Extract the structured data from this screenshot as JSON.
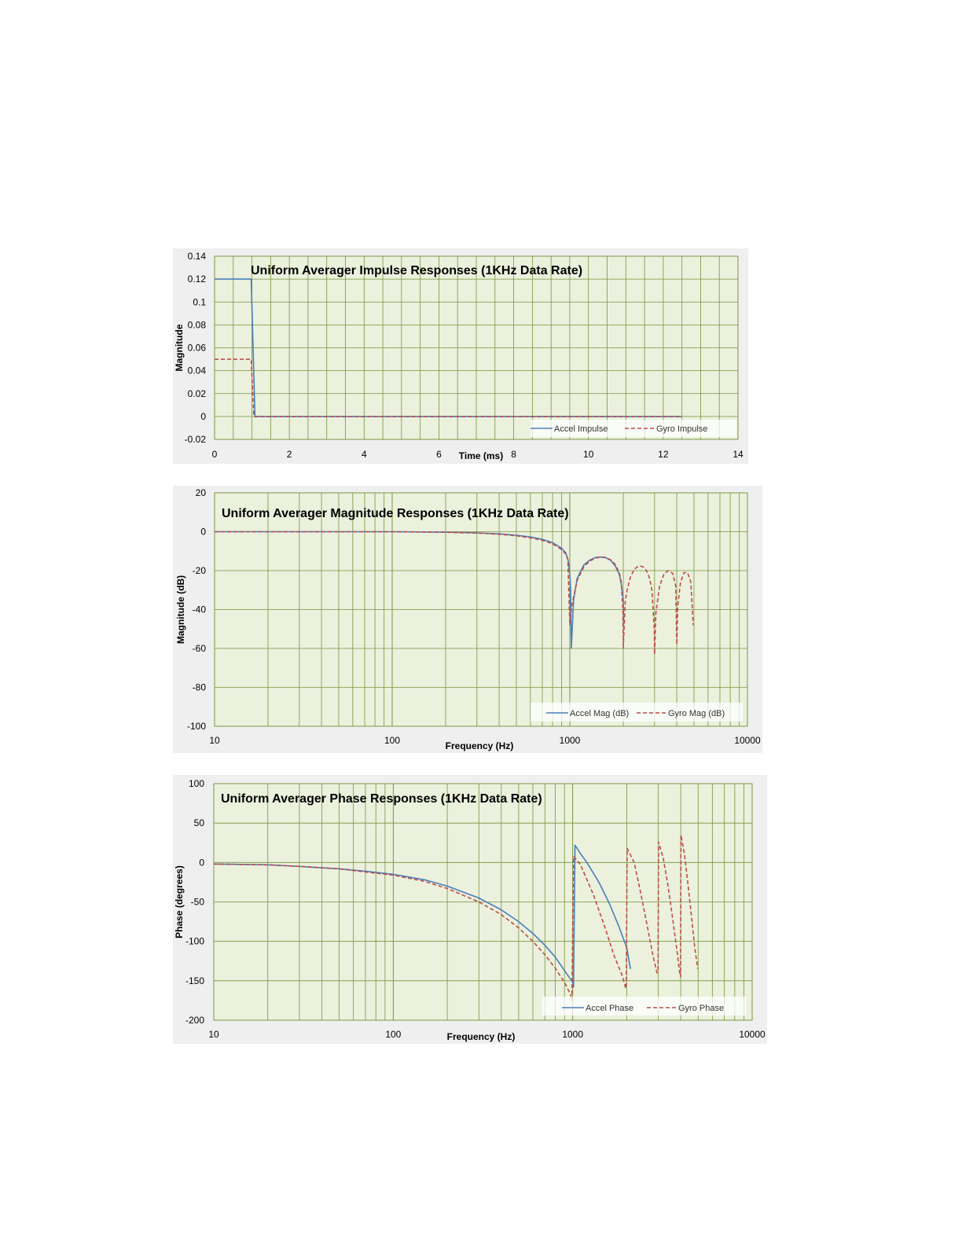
{
  "colors": {
    "plot_bg": "#ebf1dd",
    "grid": "#77933c",
    "panel_bg": "#efefef",
    "accel": "#4a7ebb",
    "gyro": "#be4b48"
  },
  "chart_data": [
    {
      "type": "line",
      "title": "Uniform Averager Impulse Responses (1KHz Data Rate)",
      "xlabel": "Time (ms)",
      "ylabel": "Magnitude",
      "xscale": "linear",
      "xlim": [
        0,
        14
      ],
      "ylim": [
        -0.02,
        0.14
      ],
      "xticks": [
        0,
        2,
        4,
        6,
        8,
        10,
        12,
        14
      ],
      "xtick_labels": [
        "0",
        "2",
        "4",
        "6",
        "8",
        "10",
        "12",
        "14"
      ],
      "yticks": [
        -0.02,
        0,
        0.02,
        0.04,
        0.06,
        0.08,
        0.1,
        0.12,
        0.14
      ],
      "ytick_labels": [
        "-0.02",
        "0",
        "0.02",
        "0.04",
        "0.06",
        "0.08",
        "0.1",
        "0.12",
        "0.14"
      ],
      "grid": true,
      "legend_position": "bottom-right",
      "series": [
        {
          "name": "Accel Impulse",
          "style": "solid",
          "x": [
            0,
            0.98,
            1.08,
            1.12,
            12.5
          ],
          "y": [
            0.12,
            0.12,
            0.0,
            0.0,
            0.0
          ]
        },
        {
          "name": "Gyro Impulse",
          "style": "dashed",
          "x": [
            0,
            0.98,
            1.05,
            1.12,
            12.5
          ],
          "y": [
            0.05,
            0.05,
            0.0,
            0.0,
            0.0
          ]
        }
      ]
    },
    {
      "type": "line",
      "title": "Uniform Averager Magnitude Responses (1KHz Data Rate)",
      "xlabel": "Frequency (Hz)",
      "ylabel": "Magnitude (dB)",
      "xscale": "log",
      "xlim": [
        10,
        10000
      ],
      "ylim": [
        -100,
        20
      ],
      "xticks": [
        10,
        100,
        1000,
        10000
      ],
      "xtick_labels": [
        "10",
        "100",
        "1000",
        "10000"
      ],
      "yticks": [
        -100,
        -80,
        -60,
        -40,
        -20,
        0,
        20
      ],
      "ytick_labels": [
        "-100",
        "-80",
        "-60",
        "-40",
        "-20",
        "0",
        "20"
      ],
      "grid": true,
      "legend_position": "bottom-right",
      "series": [
        {
          "name": "Accel Mag (dB)",
          "style": "solid",
          "x": [
            10,
            100,
            200,
            300,
            400,
            500,
            600,
            700,
            800,
            900,
            950,
            980,
            1000,
            1010,
            1020,
            1050,
            1100,
            1200,
            1300,
            1400,
            1500,
            1600,
            1700,
            1800,
            1900,
            1950,
            2000,
            2010
          ],
          "y": [
            0,
            0,
            -0.2,
            -0.6,
            -1.1,
            -1.8,
            -2.7,
            -3.9,
            -5.6,
            -8.5,
            -11,
            -15,
            -22,
            -30,
            -60,
            -35,
            -24,
            -17,
            -14.5,
            -13.2,
            -13,
            -13.4,
            -14.8,
            -17.5,
            -22,
            -27,
            -35,
            -48
          ]
        },
        {
          "name": "Gyro Mag (dB)",
          "style": "dashed",
          "x": [
            10,
            100,
            200,
            300,
            400,
            500,
            600,
            700,
            800,
            900,
            950,
            975,
            1000,
            1025,
            1100,
            1200,
            1300,
            1400,
            1500,
            1600,
            1700,
            1800,
            1900,
            1950,
            1990,
            2000,
            2050,
            2100,
            2200,
            2300,
            2400,
            2500,
            2600,
            2700,
            2800,
            2900,
            2990,
            3000,
            3050,
            3200,
            3400,
            3600,
            3800,
            3950,
            4000,
            4050,
            4200,
            4400,
            4600,
            4800,
            4950
          ],
          "y": [
            0,
            0,
            -0.3,
            -0.7,
            -1.3,
            -2.1,
            -3.1,
            -4.4,
            -6.2,
            -9.2,
            -11.5,
            -14,
            -48,
            -38,
            -25,
            -18,
            -15,
            -13.5,
            -13,
            -13.3,
            -14.5,
            -16.8,
            -21,
            -26,
            -40,
            -60,
            -36,
            -30,
            -23,
            -19.5,
            -18,
            -17.6,
            -18.2,
            -20,
            -23.5,
            -30,
            -50,
            -63,
            -42,
            -28,
            -21.5,
            -20,
            -21.5,
            -28,
            -58,
            -38,
            -26,
            -21,
            -21,
            -26,
            -48
          ]
        }
      ]
    },
    {
      "type": "line",
      "title": "Uniform Averager Phase Responses (1KHz Data Rate)",
      "xlabel": "Frequency (Hz)",
      "ylabel": "Phase (degrees)",
      "xscale": "log",
      "xlim": [
        10,
        10000
      ],
      "ylim": [
        -200,
        100
      ],
      "xticks": [
        10,
        100,
        1000,
        10000
      ],
      "xtick_labels": [
        "10",
        "100",
        "1000",
        "10000"
      ],
      "yticks": [
        -200,
        -150,
        -100,
        -50,
        0,
        50,
        100
      ],
      "ytick_labels": [
        "-200",
        "-150",
        "-100",
        "-50",
        "0",
        "50",
        "100"
      ],
      "grid": true,
      "legend_position": "bottom-right",
      "series": [
        {
          "name": "Accel Phase",
          "style": "solid",
          "x": [
            10,
            20,
            30,
            50,
            70,
            100,
            150,
            200,
            300,
            400,
            500,
            600,
            700,
            800,
            900,
            1000,
            1010,
            1030,
            1100,
            1200,
            1400,
            1600,
            1800,
            2000,
            2100
          ],
          "y": [
            -2,
            -3,
            -5,
            -8,
            -11,
            -15,
            -22,
            -30,
            -45,
            -60,
            -75,
            -90,
            -105,
            -120,
            -137,
            -152,
            -158,
            22,
            12,
            0,
            -25,
            -52,
            -80,
            -108,
            -135
          ]
        },
        {
          "name": "Gyro Phase",
          "style": "dashed",
          "x": [
            10,
            20,
            30,
            50,
            70,
            100,
            150,
            200,
            300,
            400,
            500,
            600,
            700,
            800,
            900,
            975,
            990,
            1010,
            1100,
            1300,
            1500,
            1700,
            1900,
            1975,
            1990,
            2010,
            2200,
            2400,
            2600,
            2800,
            2950,
            2990,
            3010,
            3200,
            3400,
            3600,
            3800,
            3950,
            3990,
            4010,
            4200,
            4400,
            4600,
            4800,
            4980
          ],
          "y": [
            -2,
            -3,
            -5,
            -8,
            -12,
            -16,
            -24,
            -33,
            -50,
            -66,
            -83,
            -100,
            -117,
            -134,
            -152,
            -168,
            -175,
            8,
            -2,
            -40,
            -80,
            -118,
            -145,
            -160,
            -150,
            18,
            0,
            -40,
            -80,
            -118,
            -140,
            -135,
            26,
            5,
            -30,
            -70,
            -110,
            -140,
            -145,
            35,
            10,
            -30,
            -70,
            -110,
            -135
          ]
        }
      ]
    }
  ]
}
